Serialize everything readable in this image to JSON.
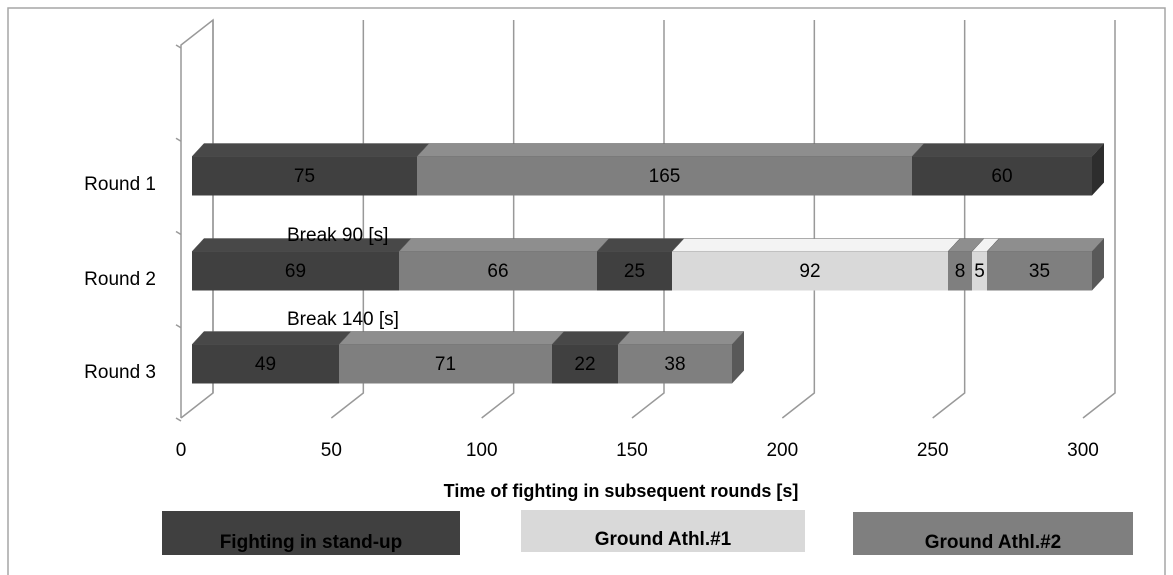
{
  "chart_data": {
    "type": "stacked-bar-3d",
    "xlabel": "Time of fighting in subsequent rounds [s]",
    "xlim": [
      0,
      300
    ],
    "xticks": [
      0,
      50,
      100,
      150,
      200,
      250,
      300
    ],
    "bars": [
      {
        "category": "Round 1",
        "values": [
          75,
          165,
          60
        ],
        "colors": [
          "#404040",
          "#7f7f7f",
          "#404040"
        ]
      },
      {
        "category": "Round 2",
        "values": [
          69,
          66,
          25,
          92,
          8,
          5,
          35
        ],
        "colors": [
          "#404040",
          "#7f7f7f",
          "#404040",
          "#d9d9d9",
          "#7f7f7f",
          "#d9d9d9",
          "#7f7f7f"
        ]
      },
      {
        "category": "Round 3",
        "values": [
          49,
          71,
          22,
          38
        ],
        "colors": [
          "#404040",
          "#7f7f7f",
          "#404040",
          "#7f7f7f"
        ]
      }
    ],
    "annotations": [
      "Break 90 [s]",
      "Break 140 [s]"
    ],
    "legend": [
      {
        "name": "Fighting in stand-up",
        "color": "#404040"
      },
      {
        "name": "Ground Athl.#1",
        "color": "#d9d9d9"
      },
      {
        "name": "Ground Athl.#2",
        "color": "#7f7f7f"
      }
    ]
  }
}
